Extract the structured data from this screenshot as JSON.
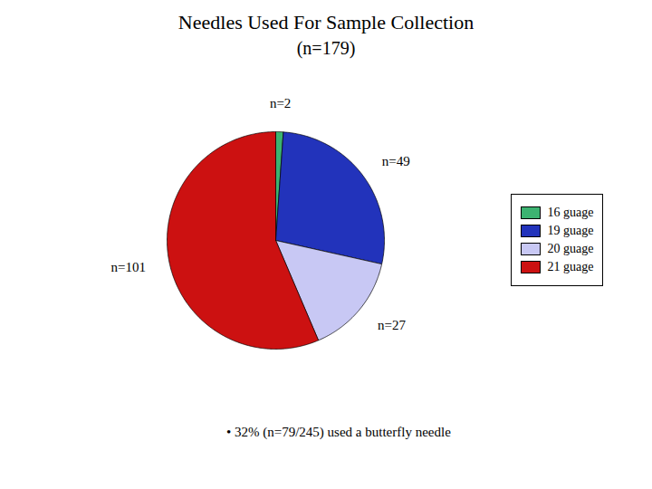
{
  "chart_data": {
    "type": "pie",
    "title": "Needles Used For Sample Collection",
    "subtitle": "(n=179)",
    "categories": [
      "16 guage",
      "19 guage",
      "20 guage",
      "21 guage"
    ],
    "values": [
      2,
      49,
      27,
      101
    ],
    "value_labels": [
      "n=2",
      "n=49",
      "n=27",
      "n=101"
    ],
    "colors": [
      "#3cb371",
      "#2233bb",
      "#c8c8f4",
      "#cc1111"
    ],
    "data_labels": true,
    "legend": "right",
    "annotations": [
      "• 32% (n=79/245) used a butterfly needle"
    ]
  }
}
